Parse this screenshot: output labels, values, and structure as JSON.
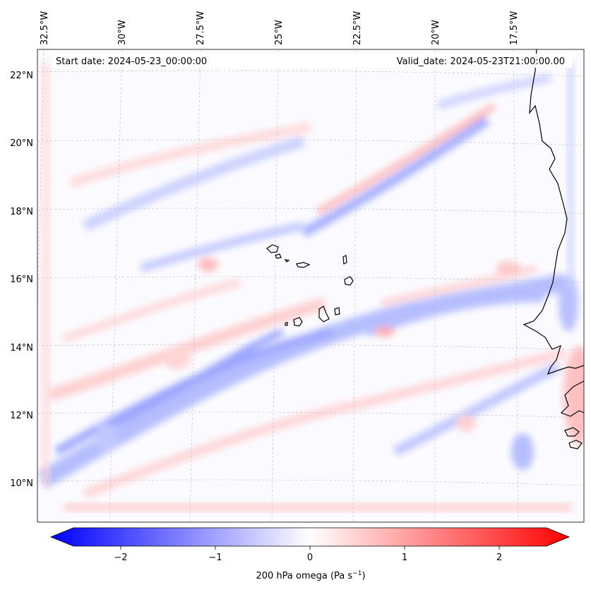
{
  "map": {
    "header_left": "Start date: 2024-05-23_00:00:00",
    "header_right": "Valid_date: 2024-05-23T21:00:00.00",
    "lon_labels": [
      "32.5°W",
      "30°W",
      "27.5°W",
      "25°W",
      "22.5°W",
      "20°W",
      "17.5°W"
    ],
    "lat_labels": [
      "22°N",
      "20°N",
      "18°N",
      "16°N",
      "14°N",
      "12°N",
      "10°N"
    ],
    "colorbar": {
      "ticks": [
        "−2",
        "−1",
        "0",
        "1",
        "2"
      ],
      "tick_values": [
        -2,
        -1,
        0,
        1,
        2
      ],
      "range": [
        -2.6,
        2.6
      ],
      "label": "200 hPa omega (Pa s",
      "label_sup": "−1",
      "label_end": ")",
      "colormap": [
        "#0000ff",
        "#ffffff",
        "#ff0000"
      ]
    }
  }
}
